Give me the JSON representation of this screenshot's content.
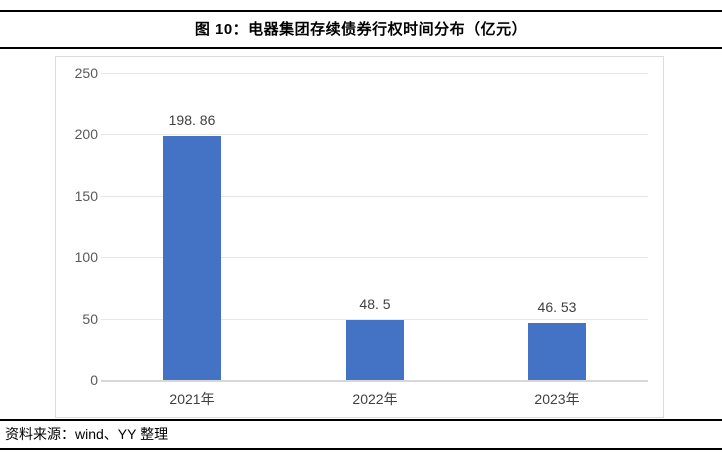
{
  "header": {
    "title": "图 10：电器集团存续债券行权时间分布（亿元）"
  },
  "footer": {
    "source": "资料来源：wind、YY 整理"
  },
  "chart_data": {
    "type": "bar",
    "title": "图 10：电器集团存续债券行权时间分布（亿元）",
    "categories": [
      "2021年",
      "2022年",
      "2023年"
    ],
    "values": [
      198.86,
      48.5,
      46.53
    ],
    "value_labels": [
      "198. 86",
      "48. 5",
      "46. 53"
    ],
    "xlabel": "",
    "ylabel": "",
    "ylim": [
      0,
      250
    ],
    "yticks": [
      0,
      50,
      100,
      150,
      200,
      250
    ],
    "grid": true,
    "legend": "none",
    "bar_color": "#4472C4"
  },
  "colors": {
    "bar": "#4472C4",
    "gridline": "#e6e6e6",
    "axis_baseline": "#d7d7d7",
    "value_label_text": "#404040",
    "tick_label_text": "#595959",
    "category_label_text": "#404040",
    "chart_border": "#dcdcdc",
    "rule": "#000000"
  }
}
